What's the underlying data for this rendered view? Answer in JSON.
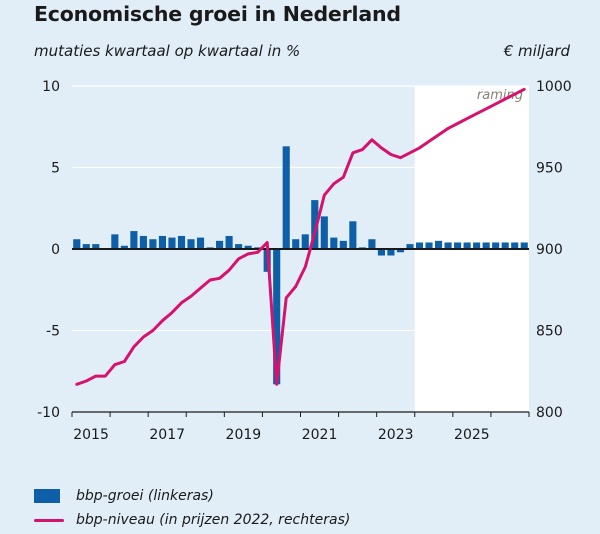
{
  "header": {
    "title": "Economische groei in Nederland",
    "subtitle": "mutaties kwartaal op kwartaal in %",
    "right_unit": "€ miljard"
  },
  "legend": {
    "bar_label": "bbp-groei (linkeras)",
    "line_label": "bbp-niveau (in prijzen 2022, rechteras)"
  },
  "colors": {
    "bar": "#0f5fa8",
    "line": "#d6126e",
    "forecast_shade": "#ffffff",
    "background": "#e1eef7"
  },
  "chart_data": {
    "type": "bar+line",
    "title": "Economische groei in Nederland",
    "subtitle": "mutaties kwartaal op kwartaal in %",
    "x_tick_labels": [
      "2015",
      "2017",
      "2019",
      "2021",
      "2023",
      "2025"
    ],
    "forecast_label": "raming",
    "forecast_start_index": 36,
    "y_left": {
      "lim": [
        -10,
        10
      ],
      "ticks": [
        "10",
        "5",
        "0",
        "-5",
        "-10"
      ]
    },
    "y_right": {
      "unit": "€ miljard",
      "lim": [
        800,
        1000
      ],
      "ticks": [
        "1000",
        "950",
        "900",
        "850",
        "800"
      ]
    },
    "series": [
      {
        "name": "bbp-groei (linkeras)",
        "type": "bar",
        "axis": "left",
        "values": [
          0.6,
          0.3,
          0.3,
          0.0,
          0.9,
          0.2,
          1.1,
          0.8,
          0.6,
          0.8,
          0.7,
          0.8,
          0.6,
          0.7,
          0.1,
          0.5,
          0.8,
          0.3,
          0.2,
          0.1,
          -1.4,
          -8.3,
          6.3,
          0.6,
          0.9,
          3.0,
          2.0,
          0.7,
          0.5,
          1.7,
          0.1,
          0.6,
          -0.4,
          -0.4,
          -0.2,
          0.3,
          0.4,
          0.4,
          0.5,
          0.4,
          0.4,
          0.4,
          0.4,
          0.4,
          0.4,
          0.4,
          0.4,
          0.4
        ]
      },
      {
        "name": "bbp-niveau (in prijzen 2022, rechteras)",
        "type": "line",
        "axis": "right",
        "values": [
          817,
          819,
          822,
          822,
          829,
          831,
          840,
          846,
          850,
          856,
          861,
          867,
          871,
          876,
          881,
          882,
          887,
          894,
          897,
          898,
          904,
          817,
          870,
          877,
          889,
          910,
          933,
          940,
          944,
          959,
          961,
          967,
          962,
          958,
          956,
          959,
          962,
          966,
          970,
          974,
          977,
          980,
          983,
          986,
          989,
          992,
          995,
          998
        ]
      }
    ],
    "grid": true
  }
}
